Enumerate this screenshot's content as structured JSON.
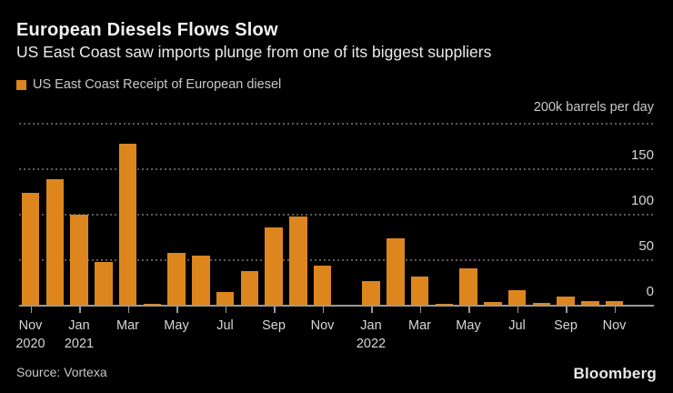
{
  "header": {
    "title": "European Diesels Flows Slow",
    "subtitle": "US East Coast saw imports plunge from one of its biggest suppliers"
  },
  "legend": {
    "label": "US East Coast Receipt of European diesel",
    "swatch_icon": "square-swatch-icon",
    "swatch_color": "#DD861E"
  },
  "footer": {
    "source": "Source: Vortexa",
    "brand": "Bloomberg"
  },
  "colors": {
    "background": "#000000",
    "bar": "#DD861E",
    "gridline": "#5a5a5a",
    "axis_line": "#9a9a9a",
    "text_primary": "#f4f4f4",
    "text_secondary": "#c9c9c9",
    "text_axis": "#d6d6d6"
  },
  "chart_data": {
    "type": "bar",
    "title": "European Diesels Flows Slow",
    "subtitle": "US East Coast saw imports plunge from one of its biggest suppliers",
    "series_name": "US East Coast Receipt of European diesel",
    "unit_label": "200k barrels per day",
    "ylabel": "k barrels per day",
    "ylim": [
      0,
      200
    ],
    "grid": "horizontal-dotted",
    "legend_position": "top-left",
    "y_axis": {
      "grid_values": [
        200,
        150,
        100,
        50
      ],
      "ticks": [
        {
          "v": 150,
          "label": "150"
        },
        {
          "v": 100,
          "label": "100"
        },
        {
          "v": 50,
          "label": "50"
        },
        {
          "v": 0,
          "label": "0"
        }
      ]
    },
    "categories": [
      "Nov 2020",
      "Dec 2020",
      "Jan 2021",
      "Feb 2021",
      "Mar 2021",
      "Apr 2021",
      "May 2021",
      "Jun 2021",
      "Jul 2021",
      "Aug 2021",
      "Sep 2021",
      "Oct 2021",
      "Nov 2021",
      "Dec 2021",
      "Jan 2022",
      "Feb 2022",
      "Mar 2022",
      "Apr 2022",
      "May 2022",
      "Jun 2022",
      "Jul 2022",
      "Aug 2022",
      "Sep 2022",
      "Oct 2022",
      "Nov 2022",
      "Dec 2022"
    ],
    "values": [
      124,
      139,
      100,
      48,
      178,
      2,
      58,
      55,
      15,
      38,
      86,
      98,
      44,
      1,
      27,
      74,
      32,
      2,
      41,
      4,
      17,
      3,
      10,
      5,
      5,
      0
    ],
    "x_ticks": [
      {
        "label": "Nov",
        "year": "2020"
      },
      {
        "label": "Jan",
        "year": "2021"
      },
      {
        "label": "Mar"
      },
      {
        "label": "May"
      },
      {
        "label": "Jul"
      },
      {
        "label": "Sep"
      },
      {
        "label": "Nov"
      },
      {
        "label": "Jan",
        "year": "2022"
      },
      {
        "label": "Mar"
      },
      {
        "label": "May"
      },
      {
        "label": "Jul"
      },
      {
        "label": "Sep"
      },
      {
        "label": "Nov"
      }
    ]
  }
}
